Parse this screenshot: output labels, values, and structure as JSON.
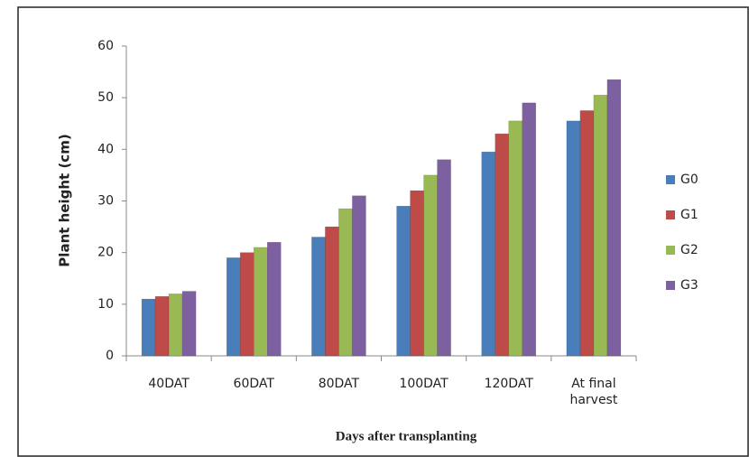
{
  "chart_data": {
    "type": "bar",
    "x_label": "Days after transplanting",
    "y_label": "Plant height (cm)",
    "categories": [
      "40DAT",
      "60DAT",
      "80DAT",
      "100DAT",
      "120DAT",
      "At final harvest"
    ],
    "series": [
      {
        "name": "G0",
        "color": "#4a7ebb",
        "values": [
          11,
          19,
          23,
          29,
          39.5,
          45.5
        ]
      },
      {
        "name": "G1",
        "color": "#be4b48",
        "values": [
          11.5,
          20,
          25,
          32,
          43,
          47.5
        ]
      },
      {
        "name": "G2",
        "color": "#98b954",
        "values": [
          12,
          21,
          28.5,
          35,
          45.5,
          50.5
        ]
      },
      {
        "name": "G3",
        "color": "#7d60a0",
        "values": [
          12.5,
          22,
          31,
          38,
          49,
          53.5
        ]
      }
    ],
    "ylim": [
      0,
      60
    ],
    "yticks": [
      0,
      10,
      20,
      30,
      40,
      50,
      60
    ],
    "grid": false,
    "legend": "right"
  }
}
